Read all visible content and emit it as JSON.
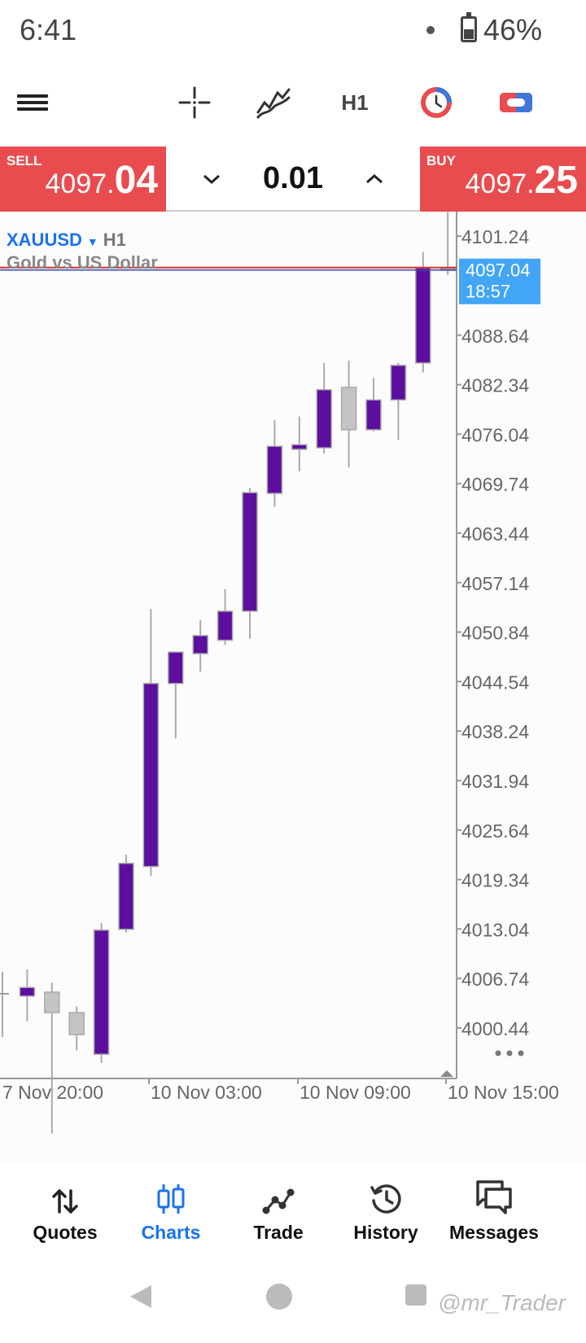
{
  "status": {
    "time": "6:41",
    "battery": "46%",
    "battery_level": 0.46
  },
  "toolbar": {
    "timeframe": "H1"
  },
  "trade": {
    "sell_label": "SELL",
    "sell_price_small": "4097.",
    "sell_price_big": "04",
    "lot": "0.01",
    "buy_label": "BUY",
    "buy_price_small": "4097.",
    "buy_price_big": "25"
  },
  "chart": {
    "symbol": "XAUUSD",
    "timeframe": "H1",
    "description": "Gold vs US Dollar",
    "current_price": "4097.04",
    "countdown": "18:57",
    "y_ticks": [
      "4101.24",
      "4088.64",
      "4082.34",
      "4076.04",
      "4069.74",
      "4063.44",
      "4057.14",
      "4050.84",
      "4044.54",
      "4038.24",
      "4031.94",
      "4025.64",
      "4019.34",
      "4013.04",
      "4006.74",
      "4000.44"
    ],
    "x_ticks": [
      "7 Nov 20:00",
      "10 Nov 03:00",
      "10 Nov 09:00",
      "10 Nov 15:00"
    ],
    "colors": {
      "bull": "#5c0f9e",
      "bear": "#c4c4c4",
      "bid_line": "#d32f2f",
      "ask_line": "#3949ab",
      "price_tag": "#42a5f5"
    }
  },
  "chart_data": {
    "type": "candlestick",
    "symbol": "XAUUSD",
    "timeframe": "H1",
    "ylim": [
      3993,
      4108
    ],
    "y_ticks": [
      4101.24,
      4088.64,
      4082.34,
      4076.04,
      4069.74,
      4063.44,
      4057.14,
      4050.84,
      4044.54,
      4038.24,
      4031.94,
      4025.64,
      4019.34,
      4013.04,
      4006.74,
      4000.44
    ],
    "candles": [
      {
        "o": 4004.8,
        "h": 4007.6,
        "l": 3999.3,
        "c": 4004.8
      },
      {
        "o": 4004.5,
        "h": 4007.9,
        "l": 4001.3,
        "c": 4005.6
      },
      {
        "o": 4005.0,
        "h": 4006.2,
        "l": 3987.0,
        "c": 4002.4
      },
      {
        "o": 4002.4,
        "h": 4003.2,
        "l": 3997.6,
        "c": 3999.6
      },
      {
        "o": 3997.1,
        "h": 4013.8,
        "l": 3996.0,
        "c": 4012.9
      },
      {
        "o": 4013.0,
        "h": 4022.5,
        "l": 4012.6,
        "c": 4021.4
      },
      {
        "o": 4021.0,
        "h": 4053.8,
        "l": 4019.8,
        "c": 4044.3
      },
      {
        "o": 4044.3,
        "h": 4048.3,
        "l": 4037.3,
        "c": 4048.3
      },
      {
        "o": 4048.1,
        "h": 4052.4,
        "l": 4045.8,
        "c": 4050.4
      },
      {
        "o": 4049.8,
        "h": 4056.3,
        "l": 4049.2,
        "c": 4053.5
      },
      {
        "o": 4053.5,
        "h": 4069.2,
        "l": 4050.0,
        "c": 4068.6
      },
      {
        "o": 4068.5,
        "h": 4077.8,
        "l": 4066.8,
        "c": 4074.5
      },
      {
        "o": 4074.1,
        "h": 4078.3,
        "l": 4071.3,
        "c": 4074.7
      },
      {
        "o": 4074.3,
        "h": 4085.1,
        "l": 4073.6,
        "c": 4081.7
      },
      {
        "o": 4082.0,
        "h": 4085.4,
        "l": 4071.8,
        "c": 4076.6
      },
      {
        "o": 4076.6,
        "h": 4083.2,
        "l": 4076.4,
        "c": 4080.4
      },
      {
        "o": 4080.4,
        "h": 4085.1,
        "l": 4075.3,
        "c": 4084.8
      },
      {
        "o": 4085.1,
        "h": 4099.2,
        "l": 4083.9,
        "c": 4097.2
      },
      {
        "o": 4097.1,
        "h": 4106.8,
        "l": 4096.3,
        "c": 4097.0
      }
    ],
    "current_bid": 4097.04,
    "x_ticks": [
      "7 Nov 20:00",
      "10 Nov 03:00",
      "10 Nov 09:00",
      "10 Nov 15:00"
    ]
  },
  "nav": {
    "quotes": "Quotes",
    "charts": "Charts",
    "trade": "Trade",
    "history": "History",
    "messages": "Messages"
  },
  "watermark": "@mr_Trader"
}
